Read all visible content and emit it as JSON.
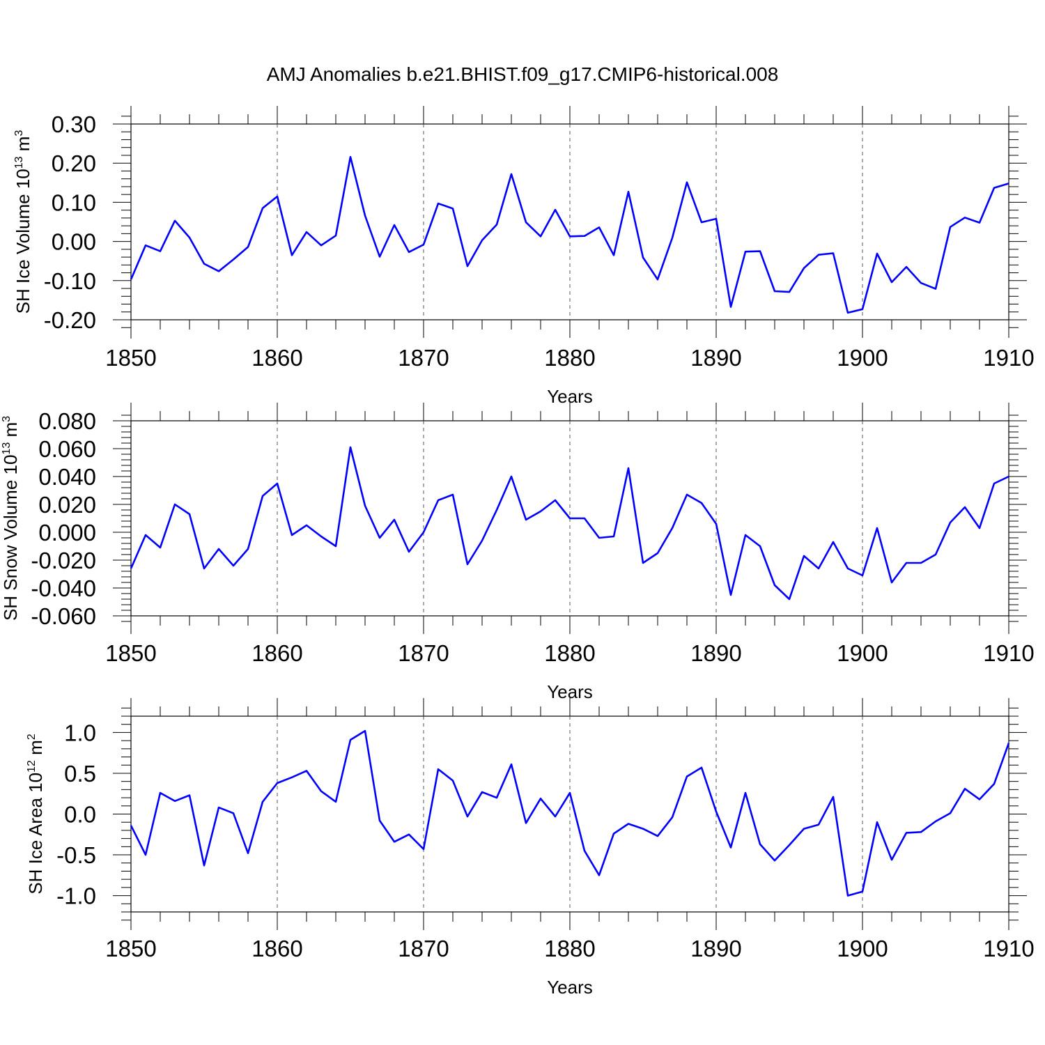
{
  "title": "AMJ Anomalies b.e21.BHIST.f09_g17.CMIP6-historical.008",
  "chart_data": [
    {
      "type": "line",
      "xlabel": "Years",
      "ylabel": {
        "text": "SH Ice Volume 10",
        "sup1": "13",
        "mid": " m",
        "sup2": "3"
      },
      "xlim": [
        1850,
        1910
      ],
      "ylim": [
        -0.2,
        0.3
      ],
      "xticks": [
        1850,
        1860,
        1870,
        1880,
        1890,
        1900,
        1910
      ],
      "xtick_labels": [
        "1850",
        "1860",
        "1870",
        "1880",
        "1890",
        "1900",
        "1910"
      ],
      "yticks": [
        0.3,
        0.2,
        0.1,
        0.0,
        -0.1,
        -0.2
      ],
      "ytick_labels": [
        "0.30",
        "0.20",
        "0.10",
        "0.00",
        "-0.10",
        "-0.20"
      ],
      "x": [
        1850,
        1851,
        1852,
        1853,
        1854,
        1855,
        1856,
        1857,
        1858,
        1859,
        1860,
        1861,
        1862,
        1863,
        1864,
        1865,
        1866,
        1867,
        1868,
        1869,
        1870,
        1871,
        1872,
        1873,
        1874,
        1875,
        1876,
        1877,
        1878,
        1879,
        1880,
        1881,
        1882,
        1883,
        1884,
        1885,
        1886,
        1887,
        1888,
        1889,
        1890,
        1891,
        1892,
        1893,
        1894,
        1895,
        1896,
        1897,
        1898,
        1899,
        1900,
        1901,
        1902,
        1903,
        1904,
        1905,
        1906,
        1907,
        1908,
        1909,
        1910
      ],
      "y": [
        -0.097,
        -0.01,
        -0.025,
        0.053,
        0.01,
        -0.057,
        -0.076,
        -0.046,
        -0.014,
        0.085,
        0.115,
        -0.035,
        0.024,
        -0.01,
        0.015,
        0.216,
        0.066,
        -0.039,
        0.042,
        -0.027,
        -0.008,
        0.097,
        0.084,
        -0.063,
        0.003,
        0.043,
        0.172,
        0.049,
        0.013,
        0.081,
        0.013,
        0.014,
        0.036,
        -0.035,
        0.127,
        -0.041,
        -0.097,
        0.009,
        0.151,
        0.049,
        0.058,
        -0.167,
        -0.026,
        -0.025,
        -0.127,
        -0.129,
        -0.068,
        -0.034,
        -0.03,
        -0.182,
        -0.173,
        -0.031,
        -0.104,
        -0.065,
        -0.106,
        -0.121,
        0.037,
        0.061,
        0.048,
        0.137,
        0.148
      ]
    },
    {
      "type": "line",
      "xlabel": "Years",
      "ylabel": {
        "text": "SH Snow Volume 10",
        "sup1": "13",
        "mid": " m",
        "sup2": "3"
      },
      "xlim": [
        1850,
        1910
      ],
      "ylim": [
        -0.06,
        0.08
      ],
      "xticks": [
        1850,
        1860,
        1870,
        1880,
        1890,
        1900,
        1910
      ],
      "xtick_labels": [
        "1850",
        "1860",
        "1870",
        "1880",
        "1890",
        "1900",
        "1910"
      ],
      "yticks": [
        0.08,
        0.06,
        0.04,
        0.02,
        0.0,
        -0.02,
        -0.04,
        -0.06
      ],
      "ytick_labels": [
        "0.080",
        "0.060",
        "0.040",
        "0.020",
        "0.000",
        "-0.020",
        "-0.040",
        "-0.060"
      ],
      "x": [
        1850,
        1851,
        1852,
        1853,
        1854,
        1855,
        1856,
        1857,
        1858,
        1859,
        1860,
        1861,
        1862,
        1863,
        1864,
        1865,
        1866,
        1867,
        1868,
        1869,
        1870,
        1871,
        1872,
        1873,
        1874,
        1875,
        1876,
        1877,
        1878,
        1879,
        1880,
        1881,
        1882,
        1883,
        1884,
        1885,
        1886,
        1887,
        1888,
        1889,
        1890,
        1891,
        1892,
        1893,
        1894,
        1895,
        1896,
        1897,
        1898,
        1899,
        1900,
        1901,
        1902,
        1903,
        1904,
        1905,
        1906,
        1907,
        1908,
        1909,
        1910
      ],
      "y": [
        -0.026,
        -0.002,
        -0.011,
        0.02,
        0.013,
        -0.026,
        -0.012,
        -0.024,
        -0.012,
        0.026,
        0.035,
        -0.002,
        0.005,
        -0.003,
        -0.01,
        0.061,
        0.019,
        -0.004,
        0.009,
        -0.014,
        0.0,
        0.023,
        0.027,
        -0.023,
        -0.006,
        0.016,
        0.04,
        0.009,
        0.015,
        0.023,
        0.01,
        0.01,
        -0.004,
        -0.003,
        0.046,
        -0.022,
        -0.015,
        0.003,
        0.027,
        0.021,
        0.006,
        -0.045,
        -0.002,
        -0.01,
        -0.038,
        -0.048,
        -0.017,
        -0.026,
        -0.007,
        -0.026,
        -0.031,
        0.003,
        -0.036,
        -0.022,
        -0.022,
        -0.016,
        0.007,
        0.018,
        0.003,
        0.035,
        0.04
      ]
    },
    {
      "type": "line",
      "xlabel": "Years",
      "ylabel": {
        "text": "SH Ice Area 10",
        "sup1": "12",
        "mid": " m",
        "sup2": "2"
      },
      "xlim": [
        1850,
        1910
      ],
      "ylim": [
        -1.2,
        1.2
      ],
      "xticks": [
        1850,
        1860,
        1870,
        1880,
        1890,
        1900,
        1910
      ],
      "xtick_labels": [
        "1850",
        "1860",
        "1870",
        "1880",
        "1890",
        "1900",
        "1910"
      ],
      "yticks": [
        1.0,
        0.5,
        0.0,
        -0.5,
        -1.0
      ],
      "ytick_labels": [
        "1.0",
        "0.5",
        "0.0",
        "-0.5",
        "-1.0"
      ],
      "x": [
        1850,
        1851,
        1852,
        1853,
        1854,
        1855,
        1856,
        1857,
        1858,
        1859,
        1860,
        1861,
        1862,
        1863,
        1864,
        1865,
        1866,
        1867,
        1868,
        1869,
        1870,
        1871,
        1872,
        1873,
        1874,
        1875,
        1876,
        1877,
        1878,
        1879,
        1880,
        1881,
        1882,
        1883,
        1884,
        1885,
        1886,
        1887,
        1888,
        1889,
        1890,
        1891,
        1892,
        1893,
        1894,
        1895,
        1896,
        1897,
        1898,
        1899,
        1900,
        1901,
        1902,
        1903,
        1904,
        1905,
        1906,
        1907,
        1908,
        1909,
        1910
      ],
      "y": [
        -0.14,
        -0.5,
        0.26,
        0.16,
        0.23,
        -0.63,
        0.08,
        0.01,
        -0.48,
        0.15,
        0.38,
        0.45,
        0.53,
        0.28,
        0.15,
        0.91,
        1.02,
        -0.08,
        -0.34,
        -0.25,
        -0.43,
        0.55,
        0.41,
        -0.03,
        0.27,
        0.2,
        0.61,
        -0.11,
        0.19,
        -0.03,
        0.26,
        -0.45,
        -0.75,
        -0.24,
        -0.12,
        -0.18,
        -0.27,
        -0.04,
        0.46,
        0.57,
        0.03,
        -0.41,
        0.26,
        -0.37,
        -0.57,
        -0.38,
        -0.18,
        -0.13,
        0.21,
        -1.0,
        -0.95,
        -0.1,
        -0.56,
        -0.23,
        -0.22,
        -0.09,
        0.01,
        0.31,
        0.18,
        0.37,
        0.87
      ]
    }
  ]
}
